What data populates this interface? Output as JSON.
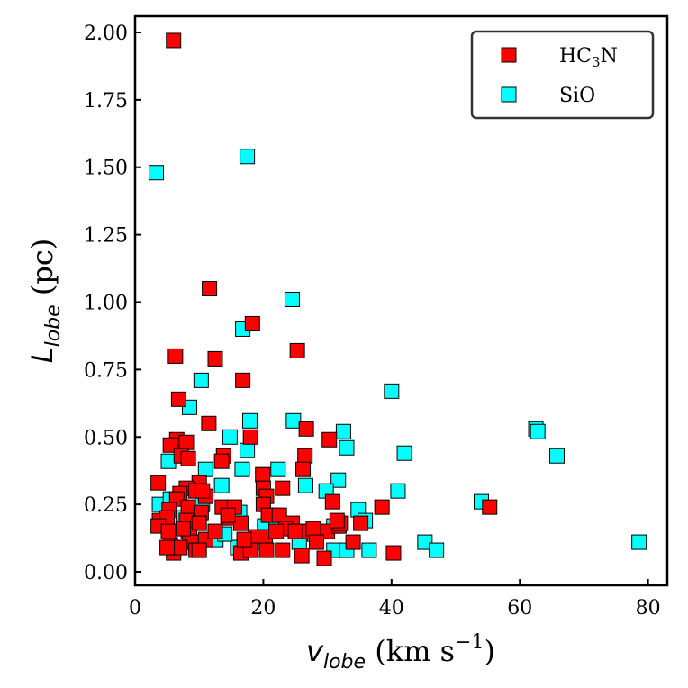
{
  "chart_data": {
    "type": "scatter",
    "title": "",
    "xlabel": {
      "main": "v",
      "sub": "lobe",
      "units_open": " (km s",
      "sup": "−1",
      "units_close": ")"
    },
    "ylabel": {
      "main": "L",
      "sub": "lobe",
      "units": " (pc)"
    },
    "xlim": [
      0,
      83
    ],
    "ylim": [
      -0.05,
      2.06
    ],
    "xticks": [
      0,
      20,
      40,
      60,
      80
    ],
    "xtick_labels": [
      "0",
      "20",
      "40",
      "60",
      "80"
    ],
    "yticks": [
      0.0,
      0.25,
      0.5,
      0.75,
      1.0,
      1.25,
      1.5,
      1.75,
      2.0
    ],
    "ytick_labels": [
      "0.00",
      "0.25",
      "0.50",
      "0.75",
      "1.00",
      "1.25",
      "1.50",
      "1.75",
      "2.00"
    ],
    "legend_position": "top-right",
    "series": [
      {
        "name": "SiO",
        "legend": {
          "main": "SiO",
          "sub": ""
        },
        "color": "#00ffff",
        "points": [
          [
            3.3,
            1.48
          ],
          [
            17.5,
            1.54
          ],
          [
            24.5,
            1.01
          ],
          [
            16.8,
            0.9
          ],
          [
            10.3,
            0.71
          ],
          [
            8.5,
            0.61
          ],
          [
            40.0,
            0.67
          ],
          [
            17.9,
            0.56
          ],
          [
            24.7,
            0.56
          ],
          [
            32.5,
            0.52
          ],
          [
            62.5,
            0.53
          ],
          [
            62.8,
            0.52
          ],
          [
            14.8,
            0.5
          ],
          [
            33.0,
            0.46
          ],
          [
            17.5,
            0.45
          ],
          [
            42.0,
            0.44
          ],
          [
            65.8,
            0.43
          ],
          [
            5.2,
            0.41
          ],
          [
            11.0,
            0.38
          ],
          [
            16.7,
            0.38
          ],
          [
            22.3,
            0.38
          ],
          [
            26.6,
            0.32
          ],
          [
            13.5,
            0.32
          ],
          [
            31.7,
            0.34
          ],
          [
            29.8,
            0.3
          ],
          [
            41.0,
            0.3
          ],
          [
            3.8,
            0.25
          ],
          [
            5.5,
            0.27
          ],
          [
            10.5,
            0.25
          ],
          [
            54.0,
            0.26
          ],
          [
            34.8,
            0.23
          ],
          [
            16.3,
            0.22
          ],
          [
            20.2,
            0.17
          ],
          [
            22.0,
            0.2
          ],
          [
            7.5,
            0.2
          ],
          [
            31.0,
            0.17
          ],
          [
            35.9,
            0.19
          ],
          [
            12.6,
            0.12
          ],
          [
            16.0,
            0.09
          ],
          [
            20.3,
            0.11
          ],
          [
            25.6,
            0.11
          ],
          [
            28.0,
            0.14
          ],
          [
            31.0,
            0.08
          ],
          [
            33.0,
            0.08
          ],
          [
            36.5,
            0.08
          ],
          [
            45.2,
            0.11
          ],
          [
            47.0,
            0.08
          ],
          [
            78.6,
            0.11
          ],
          [
            9.5,
            0.1
          ],
          [
            14.0,
            0.14
          ],
          [
            6.0,
            0.08
          ],
          [
            8.3,
            0.15
          ]
        ]
      },
      {
        "name": "HC3N",
        "legend": {
          "main": "HC",
          "sub": "3",
          "tail": "N"
        },
        "color": "#ff0000",
        "points": [
          [
            6.0,
            1.97
          ],
          [
            11.6,
            1.05
          ],
          [
            18.3,
            0.92
          ],
          [
            6.3,
            0.8
          ],
          [
            12.5,
            0.79
          ],
          [
            25.3,
            0.82
          ],
          [
            16.8,
            0.71
          ],
          [
            6.8,
            0.64
          ],
          [
            11.5,
            0.55
          ],
          [
            26.7,
            0.53
          ],
          [
            30.3,
            0.49
          ],
          [
            6.5,
            0.49
          ],
          [
            8.0,
            0.48
          ],
          [
            5.5,
            0.47
          ],
          [
            18.0,
            0.5
          ],
          [
            13.8,
            0.43
          ],
          [
            13.5,
            0.41
          ],
          [
            7.2,
            0.43
          ],
          [
            8.3,
            0.42
          ],
          [
            26.5,
            0.43
          ],
          [
            26.2,
            0.38
          ],
          [
            10.0,
            0.33
          ],
          [
            3.6,
            0.33
          ],
          [
            8.0,
            0.31
          ],
          [
            9.5,
            0.3
          ],
          [
            11.0,
            0.28
          ],
          [
            7.0,
            0.29
          ],
          [
            6.5,
            0.27
          ],
          [
            19.9,
            0.36
          ],
          [
            20.0,
            0.31
          ],
          [
            20.5,
            0.28
          ],
          [
            23.0,
            0.31
          ],
          [
            20.0,
            0.25
          ],
          [
            13.6,
            0.24
          ],
          [
            15.5,
            0.24
          ],
          [
            8.3,
            0.24
          ],
          [
            5.3,
            0.23
          ],
          [
            10.3,
            0.22
          ],
          [
            3.8,
            0.19
          ],
          [
            5.0,
            0.2
          ],
          [
            30.8,
            0.26
          ],
          [
            38.5,
            0.24
          ],
          [
            55.3,
            0.24
          ],
          [
            20.8,
            0.21
          ],
          [
            22.5,
            0.21
          ],
          [
            14.5,
            0.2
          ],
          [
            8.0,
            0.19
          ],
          [
            10.0,
            0.18
          ],
          [
            16.5,
            0.18
          ],
          [
            3.6,
            0.17
          ],
          [
            24.5,
            0.18
          ],
          [
            27.0,
            0.15
          ],
          [
            23.5,
            0.16
          ],
          [
            30.0,
            0.15
          ],
          [
            31.8,
            0.17
          ],
          [
            32.0,
            0.18
          ],
          [
            35.2,
            0.18
          ],
          [
            18.8,
            0.13
          ],
          [
            20.3,
            0.13
          ],
          [
            22.0,
            0.15
          ],
          [
            25.0,
            0.15
          ],
          [
            27.8,
            0.16
          ],
          [
            8.5,
            0.13
          ],
          [
            9.0,
            0.11
          ],
          [
            11.0,
            0.12
          ],
          [
            5.5,
            0.1
          ],
          [
            6.0,
            0.07
          ],
          [
            7.0,
            0.09
          ],
          [
            9.5,
            0.08
          ],
          [
            10.0,
            0.08
          ],
          [
            16.5,
            0.07
          ],
          [
            18.0,
            0.08
          ],
          [
            20.5,
            0.08
          ],
          [
            23.0,
            0.08
          ],
          [
            26.0,
            0.06
          ],
          [
            29.5,
            0.05
          ],
          [
            34.0,
            0.11
          ],
          [
            40.3,
            0.07
          ],
          [
            5.2,
            0.15
          ],
          [
            5.0,
            0.09
          ],
          [
            12.5,
            0.15
          ],
          [
            14.5,
            0.21
          ],
          [
            17.0,
            0.12
          ],
          [
            10.5,
            0.3
          ],
          [
            7.5,
            0.16
          ],
          [
            28.3,
            0.11
          ],
          [
            31.5,
            0.19
          ]
        ]
      }
    ]
  }
}
